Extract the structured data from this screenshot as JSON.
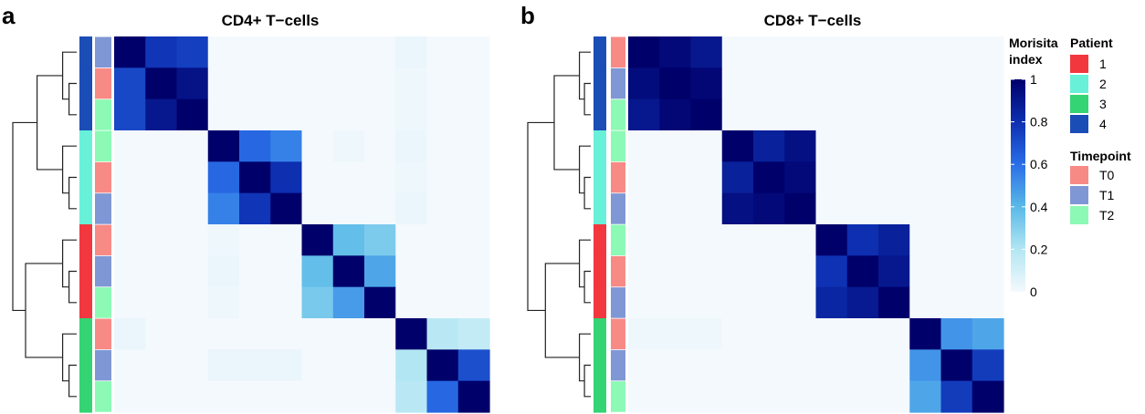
{
  "panels": [
    {
      "letter": "a",
      "title": "CD4+ T−cells",
      "patient_strip": [
        4,
        4,
        4,
        2,
        2,
        2,
        1,
        1,
        1,
        3,
        3,
        3
      ],
      "timepoint_strip": [
        "T1",
        "T0",
        "T2",
        "T2",
        "T0",
        "T1",
        "T0",
        "T1",
        "T2",
        "T0",
        "T1",
        "T2"
      ],
      "matrix": [
        [
          1.0,
          0.78,
          0.75,
          0.0,
          0.0,
          0.0,
          0.0,
          0.0,
          0.0,
          0.03,
          0.0,
          0.0
        ],
        [
          0.72,
          1.0,
          0.92,
          0.0,
          0.0,
          0.0,
          0.0,
          0.0,
          0.0,
          0.02,
          0.0,
          0.0
        ],
        [
          0.72,
          0.9,
          1.0,
          0.0,
          0.0,
          0.0,
          0.0,
          0.0,
          0.0,
          0.02,
          0.0,
          0.0
        ],
        [
          0.0,
          0.0,
          0.0,
          1.0,
          0.62,
          0.55,
          0.0,
          0.02,
          0.0,
          0.03,
          0.0,
          0.0
        ],
        [
          0.0,
          0.0,
          0.0,
          0.62,
          1.0,
          0.8,
          0.0,
          0.0,
          0.0,
          0.02,
          0.0,
          0.0
        ],
        [
          0.0,
          0.0,
          0.0,
          0.55,
          0.78,
          1.0,
          0.0,
          0.0,
          0.0,
          0.03,
          0.0,
          0.0
        ],
        [
          0.0,
          0.0,
          0.0,
          0.02,
          0.0,
          0.0,
          1.0,
          0.38,
          0.32,
          0.0,
          0.0,
          0.0
        ],
        [
          0.0,
          0.0,
          0.0,
          0.03,
          0.0,
          0.0,
          0.38,
          1.0,
          0.45,
          0.0,
          0.0,
          0.0
        ],
        [
          0.0,
          0.0,
          0.0,
          0.02,
          0.0,
          0.0,
          0.33,
          0.48,
          1.0,
          0.0,
          0.0,
          0.0
        ],
        [
          0.03,
          0.0,
          0.0,
          0.0,
          0.0,
          0.0,
          0.0,
          0.0,
          0.0,
          1.0,
          0.18,
          0.15
        ],
        [
          0.0,
          0.0,
          0.0,
          0.03,
          0.03,
          0.03,
          0.0,
          0.0,
          0.0,
          0.2,
          1.0,
          0.7
        ],
        [
          0.0,
          0.0,
          0.0,
          0.0,
          0.0,
          0.0,
          0.0,
          0.0,
          0.0,
          0.18,
          0.62,
          1.0
        ]
      ]
    },
    {
      "letter": "b",
      "title": "CD8+ T−cells",
      "patient_strip": [
        4,
        4,
        4,
        2,
        2,
        2,
        1,
        1,
        1,
        3,
        3,
        3
      ],
      "timepoint_strip": [
        "T0",
        "T1",
        "T2",
        "T2",
        "T0",
        "T1",
        "T2",
        "T0",
        "T1",
        "T0",
        "T1",
        "T2"
      ],
      "matrix": [
        [
          1.0,
          0.96,
          0.9,
          0.0,
          0.0,
          0.0,
          0.0,
          0.0,
          0.0,
          0.0,
          0.0,
          0.0
        ],
        [
          0.95,
          1.0,
          0.97,
          0.0,
          0.0,
          0.0,
          0.0,
          0.0,
          0.0,
          0.0,
          0.0,
          0.0
        ],
        [
          0.9,
          0.97,
          1.0,
          0.0,
          0.0,
          0.0,
          0.0,
          0.0,
          0.0,
          0.0,
          0.0,
          0.0
        ],
        [
          0.0,
          0.0,
          0.0,
          1.0,
          0.86,
          0.93,
          0.0,
          0.0,
          0.0,
          0.0,
          0.0,
          0.0
        ],
        [
          0.0,
          0.0,
          0.0,
          0.86,
          1.0,
          0.96,
          0.0,
          0.0,
          0.0,
          0.0,
          0.0,
          0.0
        ],
        [
          0.0,
          0.0,
          0.0,
          0.93,
          0.96,
          1.0,
          0.0,
          0.0,
          0.0,
          0.0,
          0.0,
          0.0
        ],
        [
          0.0,
          0.0,
          0.0,
          0.0,
          0.0,
          0.0,
          1.0,
          0.8,
          0.86,
          0.0,
          0.0,
          0.0
        ],
        [
          0.0,
          0.0,
          0.0,
          0.0,
          0.0,
          0.0,
          0.79,
          1.0,
          0.9,
          0.0,
          0.0,
          0.0
        ],
        [
          0.0,
          0.0,
          0.0,
          0.0,
          0.0,
          0.0,
          0.84,
          0.89,
          1.0,
          0.0,
          0.0,
          0.0
        ],
        [
          0.02,
          0.02,
          0.02,
          0.0,
          0.0,
          0.0,
          0.0,
          0.0,
          0.0,
          1.0,
          0.5,
          0.45
        ],
        [
          0.0,
          0.0,
          0.0,
          0.0,
          0.0,
          0.0,
          0.0,
          0.0,
          0.0,
          0.5,
          1.0,
          0.76
        ],
        [
          0.0,
          0.0,
          0.0,
          0.0,
          0.0,
          0.0,
          0.0,
          0.0,
          0.0,
          0.45,
          0.76,
          1.0
        ]
      ]
    }
  ],
  "colorbar": {
    "title_line1": "Morisita",
    "title_line2": "index",
    "ticks": [
      "1",
      "0.8",
      "0.6",
      "0.4",
      "0.2",
      "0"
    ],
    "stops": [
      "#f4f9fd",
      "#b2e6f3",
      "#5ab9e8",
      "#2a6ee8",
      "#0d2fb0",
      "#00006b"
    ]
  },
  "legends": {
    "patient": {
      "title": "Patient",
      "items": [
        {
          "label": "1",
          "color": "#f2373f"
        },
        {
          "label": "2",
          "color": "#68f0d9"
        },
        {
          "label": "3",
          "color": "#34d474"
        },
        {
          "label": "4",
          "color": "#1b4db7"
        }
      ]
    },
    "timepoint": {
      "title": "Timepoint",
      "items": [
        {
          "label": "T0",
          "color": "#f88a86"
        },
        {
          "label": "T1",
          "color": "#7f97d5"
        },
        {
          "label": "T2",
          "color": "#8cf9b4"
        }
      ]
    }
  },
  "chart_data": [
    {
      "type": "heatmap",
      "title": "CD4+ T−cells",
      "value_label": "Morisita index",
      "value_range": [
        0,
        1
      ],
      "row_patient": [
        4,
        4,
        4,
        2,
        2,
        2,
        1,
        1,
        1,
        3,
        3,
        3
      ],
      "row_timepoint": [
        "T1",
        "T0",
        "T2",
        "T2",
        "T0",
        "T1",
        "T0",
        "T1",
        "T2",
        "T0",
        "T1",
        "T2"
      ]
    },
    {
      "type": "heatmap",
      "title": "CD8+ T−cells",
      "value_label": "Morisita index",
      "value_range": [
        0,
        1
      ],
      "row_patient": [
        4,
        4,
        4,
        2,
        2,
        2,
        1,
        1,
        1,
        3,
        3,
        3
      ],
      "row_timepoint": [
        "T0",
        "T1",
        "T2",
        "T2",
        "T0",
        "T1",
        "T2",
        "T0",
        "T1",
        "T0",
        "T1",
        "T2"
      ]
    }
  ]
}
